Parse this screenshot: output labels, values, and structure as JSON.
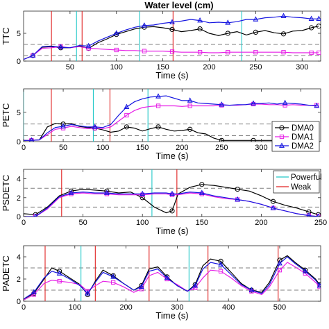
{
  "figure_title": "Water level (cm)",
  "style": {
    "colors": {
      "DMA0": "#000000",
      "DMA1": "#e61ee6",
      "DMA2": "#1515e0",
      "Powerful": "#22c8c8",
      "Weak": "#e02020",
      "reference": "#7f7f7f"
    },
    "markers": {
      "DMA0": "circle",
      "DMA1": "square",
      "DMA2": "triangle"
    },
    "reference_line_style": "dashed",
    "grid": false
  },
  "chart_data": [
    {
      "type": "line",
      "title": "Water level (cm)",
      "ylabel": "TTC",
      "xlabel": "Time (s)",
      "xlim": [
        0,
        320
      ],
      "ylim": [
        0,
        9
      ],
      "xticks": [
        50,
        100,
        150,
        200,
        250,
        300
      ],
      "yticks": [
        0,
        5
      ],
      "reference_levels": [
        1,
        3
      ],
      "events": {
        "Powerful": [
          57,
          125,
          235
        ],
        "Weak": [
          30,
          63,
          161
        ]
      },
      "series": [
        {
          "name": "DMA0",
          "x": [
            0,
            10,
            20,
            30,
            40,
            50,
            60,
            70,
            80,
            90,
            100,
            110,
            120,
            130,
            140,
            150,
            160,
            170,
            180,
            190,
            200,
            210,
            220,
            230,
            240,
            250,
            260,
            270,
            280,
            290,
            300,
            310,
            318
          ],
          "y": [
            0.3,
            1.0,
            2.5,
            2.6,
            2.4,
            2.4,
            2.7,
            2.3,
            3.3,
            4.0,
            4.8,
            5.3,
            5.8,
            6.1,
            6.2,
            6.0,
            5.7,
            5.3,
            5.5,
            5.8,
            5.0,
            4.6,
            5.0,
            5.3,
            4.7,
            5.2,
            5.5,
            5.1,
            4.9,
            5.4,
            5.5,
            6.0,
            6.3
          ]
        },
        {
          "name": "DMA1",
          "x": [
            0,
            10,
            20,
            30,
            40,
            50,
            60,
            70,
            80,
            90,
            100,
            110,
            120,
            130,
            140,
            150,
            160,
            170,
            180,
            190,
            200,
            210,
            220,
            230,
            240,
            250,
            260,
            270,
            280,
            290,
            300,
            310,
            318
          ],
          "y": [
            0.3,
            1.0,
            2.3,
            2.4,
            2.6,
            2.4,
            2.6,
            2.3,
            2.2,
            2.1,
            2.0,
            1.9,
            1.9,
            1.8,
            1.8,
            1.8,
            1.7,
            1.6,
            1.6,
            1.6,
            1.5,
            1.5,
            1.6,
            1.6,
            1.6,
            1.6,
            1.6,
            1.6,
            1.6,
            1.5,
            1.5,
            1.5,
            1.5
          ]
        },
        {
          "name": "DMA2",
          "x": [
            0,
            10,
            20,
            30,
            40,
            50,
            60,
            70,
            80,
            90,
            100,
            110,
            120,
            130,
            140,
            150,
            160,
            170,
            180,
            190,
            200,
            210,
            220,
            230,
            240,
            250,
            260,
            270,
            280,
            290,
            300,
            310,
            318
          ],
          "y": [
            0.3,
            1.0,
            2.6,
            2.7,
            2.5,
            2.4,
            2.8,
            2.7,
            3.6,
            4.3,
            5.0,
            5.6,
            6.1,
            6.4,
            6.5,
            6.8,
            7.0,
            7.2,
            7.5,
            7.3,
            6.9,
            7.0,
            6.9,
            7.1,
            7.5,
            7.5,
            7.8,
            7.9,
            8.1,
            7.9,
            7.8,
            7.6,
            7.6
          ]
        }
      ]
    },
    {
      "type": "line",
      "ylabel": "PETC",
      "xlabel": "Time (s)",
      "xlim": [
        0,
        375
      ],
      "ylim": [
        0,
        9
      ],
      "xticks": [
        0,
        50,
        100,
        150,
        200,
        250,
        300,
        350
      ],
      "yticks": [
        0,
        5
      ],
      "reference_levels": [
        1,
        3
      ],
      "legend_placement": "middle-right",
      "events": {
        "Powerful": [
          0,
          88,
          157
        ],
        "Weak": [
          35,
          109
        ]
      },
      "series": [
        {
          "name": "DMA0",
          "x": [
            0,
            10,
            20,
            30,
            40,
            50,
            60,
            70,
            80,
            90,
            100,
            110,
            120,
            130,
            140,
            150,
            160,
            170,
            180,
            190,
            200,
            210,
            220,
            230,
            240,
            250,
            260,
            270,
            280,
            290,
            300,
            310,
            320,
            330,
            340,
            350,
            360,
            370
          ],
          "y": [
            0.2,
            0.2,
            0.3,
            2.5,
            3.1,
            3.0,
            3.1,
            2.6,
            2.4,
            2.3,
            2.0,
            1.6,
            1.8,
            2.5,
            2.3,
            1.8,
            2.2,
            2.5,
            2.1,
            1.8,
            1.9,
            2.1,
            1.5,
            1.3,
            0.6,
            0.2,
            0.2,
            0.2,
            0.2,
            0.2,
            0.2,
            0.2,
            0.2,
            0.2,
            0.2,
            0.2,
            0.2,
            0.2
          ]
        },
        {
          "name": "DMA1",
          "x": [
            0,
            10,
            20,
            30,
            40,
            50,
            60,
            70,
            80,
            90,
            100,
            110,
            120,
            130,
            140,
            150,
            160,
            170,
            180,
            190,
            200,
            210,
            220,
            230,
            240,
            250,
            260,
            270,
            280,
            290,
            300,
            310,
            320,
            330,
            340,
            350,
            360,
            370
          ],
          "y": [
            0.2,
            0.2,
            0.3,
            1.2,
            2.1,
            2.3,
            2.6,
            2.4,
            2.2,
            2.3,
            2.2,
            2.5,
            3.5,
            4.5,
            5.3,
            5.8,
            6.0,
            6.1,
            6.1,
            6.1,
            6.0,
            6.1,
            6.1,
            6.1,
            6.1,
            6.2,
            6.2,
            6.2,
            6.3,
            6.4,
            6.4,
            6.3,
            6.3,
            6.2,
            6.3,
            6.2,
            6.2,
            6.2
          ]
        },
        {
          "name": "DMA2",
          "x": [
            0,
            10,
            20,
            30,
            40,
            50,
            60,
            70,
            80,
            90,
            100,
            110,
            120,
            130,
            140,
            150,
            160,
            170,
            180,
            190,
            200,
            210,
            220,
            230,
            240,
            250,
            260,
            270,
            280,
            290,
            300,
            310,
            320,
            330,
            340,
            350,
            360,
            370
          ],
          "y": [
            0.2,
            0.2,
            0.3,
            1.5,
            2.4,
            2.6,
            2.9,
            2.7,
            2.5,
            2.5,
            2.4,
            2.9,
            4.5,
            5.9,
            6.8,
            7.3,
            7.6,
            7.7,
            7.8,
            7.4,
            7.0,
            7.0,
            6.6,
            6.5,
            6.4,
            6.3,
            6.2,
            6.3,
            6.3,
            6.5,
            6.5,
            6.6,
            6.4,
            6.6,
            6.5,
            6.4,
            6.2,
            6.1
          ]
        }
      ]
    },
    {
      "type": "line",
      "ylabel": "PSDETC",
      "xlabel": "Time (s)",
      "xlim": [
        0,
        250
      ],
      "ylim": [
        0,
        5
      ],
      "xticks": [
        0,
        50,
        100,
        150,
        200,
        250
      ],
      "yticks": [
        0,
        2,
        4
      ],
      "reference_levels": [
        1,
        3
      ],
      "legend": [
        "Powerful",
        "Weak"
      ],
      "legend_placement": "top-right",
      "events": {
        "Powerful": [
          108
        ],
        "Weak": [
          32,
          129
        ]
      },
      "series": [
        {
          "name": "DMA0",
          "x": [
            0,
            10,
            20,
            30,
            40,
            50,
            60,
            70,
            80,
            90,
            100,
            110,
            120,
            125,
            130,
            140,
            150,
            160,
            170,
            180,
            190,
            200,
            210,
            220,
            230,
            240,
            248
          ],
          "y": [
            0.3,
            0.2,
            1.0,
            2.2,
            2.7,
            2.9,
            2.8,
            2.7,
            2.5,
            2.6,
            2.0,
            1.0,
            0.4,
            0.6,
            2.4,
            3.1,
            3.4,
            3.3,
            3.1,
            2.9,
            2.7,
            2.2,
            1.6,
            1.2,
            0.9,
            0.5,
            0.2
          ]
        },
        {
          "name": "DMA1",
          "x": [
            0,
            10,
            20,
            30,
            40,
            50,
            60,
            70,
            80,
            90,
            100,
            110,
            120,
            125,
            130,
            140,
            150,
            160,
            170,
            180,
            190,
            200,
            210,
            220,
            230,
            240,
            248
          ],
          "y": [
            0.0,
            0.0,
            0.8,
            2.0,
            2.4,
            2.5,
            2.4,
            2.4,
            2.3,
            2.3,
            2.3,
            2.4,
            2.4,
            2.3,
            2.3,
            2.5,
            2.4,
            2.1,
            1.9,
            1.8,
            1.6,
            1.3,
            0.9,
            0.6,
            0.3,
            0.1,
            0.0
          ]
        },
        {
          "name": "DMA2",
          "x": [
            0,
            10,
            20,
            30,
            40,
            50,
            60,
            70,
            80,
            90,
            100,
            110,
            120,
            125,
            130,
            140,
            150,
            160,
            170,
            180,
            190,
            200,
            210,
            220,
            230,
            240,
            248
          ],
          "y": [
            0.0,
            0.0,
            0.9,
            2.1,
            2.5,
            2.6,
            2.5,
            2.5,
            2.4,
            2.4,
            2.4,
            2.5,
            2.5,
            2.4,
            2.4,
            2.6,
            2.5,
            2.2,
            2.0,
            1.8,
            1.6,
            1.3,
            0.9,
            0.6,
            0.3,
            0.1,
            0.0
          ]
        }
      ]
    },
    {
      "type": "line",
      "ylabel": "PADETC",
      "xlabel": "Time (s)",
      "xlim": [
        0,
        580
      ],
      "ylim": [
        0,
        5
      ],
      "xticks": [
        0,
        100,
        200,
        300,
        400,
        500
      ],
      "yticks": [
        0,
        2,
        4
      ],
      "reference_levels": [
        1,
        3
      ],
      "events": {
        "Powerful": [
          112,
          323
        ],
        "Weak": [
          42,
          140,
          245,
          360,
          497
        ]
      },
      "series": [
        {
          "name": "DMA0",
          "x": [
            0,
            20,
            40,
            55,
            70,
            90,
            110,
            125,
            140,
            155,
            175,
            195,
            215,
            230,
            245,
            262,
            280,
            300,
            320,
            335,
            350,
            365,
            385,
            405,
            425,
            445,
            465,
            480,
            500,
            515,
            530,
            550,
            570,
            578
          ],
          "y": [
            0.2,
            0.7,
            2.0,
            3.0,
            2.7,
            2.1,
            1.5,
            0.6,
            1.8,
            2.8,
            2.3,
            1.6,
            1.0,
            1.4,
            2.9,
            3.1,
            2.2,
            1.4,
            0.9,
            1.5,
            3.2,
            3.8,
            3.6,
            2.6,
            1.6,
            1.0,
            0.8,
            1.7,
            3.7,
            4.1,
            3.5,
            2.8,
            2.0,
            1.5
          ]
        },
        {
          "name": "DMA1",
          "x": [
            0,
            20,
            40,
            55,
            70,
            90,
            110,
            125,
            140,
            155,
            175,
            195,
            215,
            230,
            245,
            262,
            280,
            300,
            320,
            335,
            350,
            365,
            385,
            405,
            425,
            445,
            465,
            480,
            500,
            515,
            530,
            550,
            570,
            578
          ],
          "y": [
            0.1,
            0.6,
            1.6,
            1.9,
            1.8,
            1.7,
            1.5,
            0.9,
            1.4,
            1.8,
            1.7,
            1.3,
            0.8,
            1.1,
            2.3,
            2.6,
            2.0,
            1.5,
            0.9,
            1.2,
            2.1,
            2.8,
            2.7,
            2.1,
            1.4,
            0.9,
            0.6,
            1.3,
            2.8,
            3.5,
            3.1,
            2.5,
            1.7,
            1.3
          ]
        },
        {
          "name": "DMA2",
          "x": [
            0,
            20,
            40,
            55,
            70,
            90,
            110,
            125,
            140,
            155,
            175,
            195,
            215,
            230,
            245,
            262,
            280,
            300,
            320,
            335,
            350,
            365,
            385,
            405,
            425,
            445,
            465,
            480,
            500,
            515,
            530,
            550,
            570,
            578
          ],
          "y": [
            0.2,
            0.8,
            2.1,
            2.7,
            2.5,
            2.0,
            1.4,
            0.7,
            1.7,
            2.6,
            2.2,
            1.6,
            1.0,
            1.3,
            2.7,
            2.9,
            2.1,
            1.4,
            0.9,
            1.4,
            2.9,
            3.5,
            3.3,
            2.4,
            1.5,
            1.0,
            0.7,
            1.5,
            3.4,
            4.0,
            3.4,
            2.7,
            1.9,
            1.4
          ]
        }
      ]
    }
  ]
}
